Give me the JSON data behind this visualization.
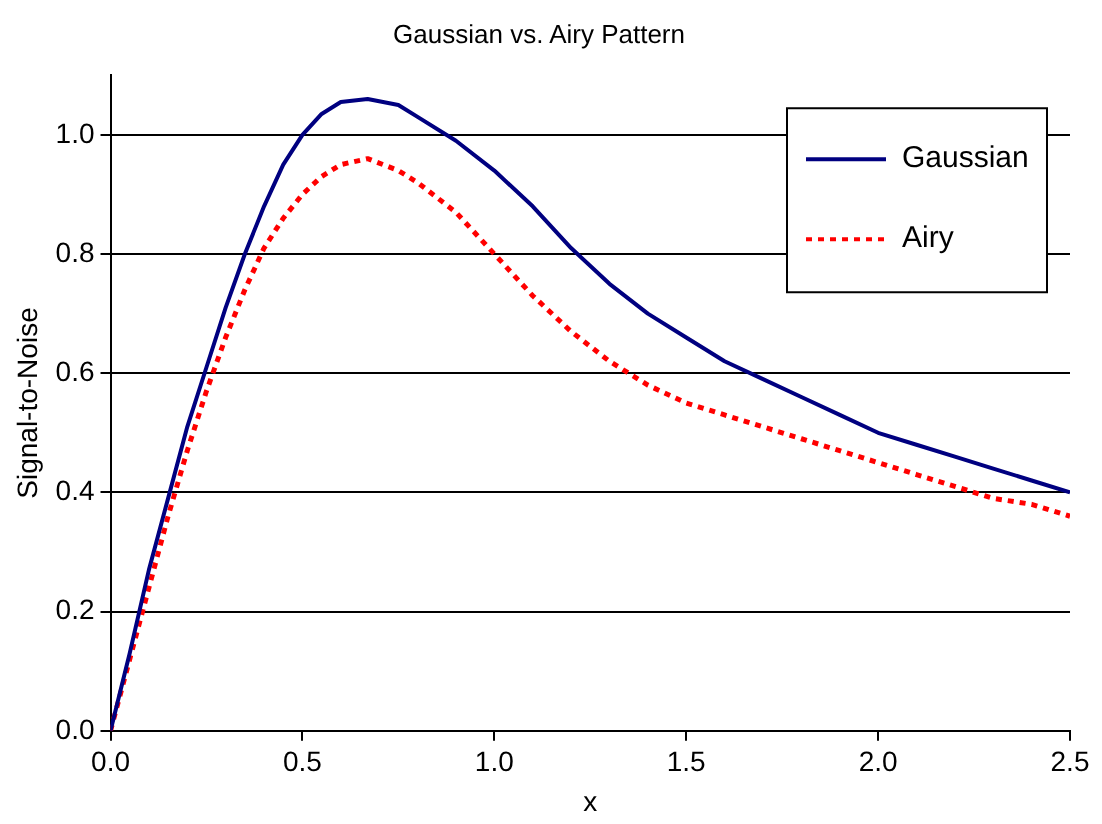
{
  "chart_data": {
    "type": "line",
    "title": "Gaussian vs. Airy Pattern",
    "xlabel": "x",
    "ylabel": "Signal-to-Noise",
    "x": [
      0,
      0.05,
      0.1,
      0.15,
      0.2,
      0.25,
      0.3,
      0.35,
      0.4,
      0.45,
      0.5,
      0.55,
      0.6,
      0.67,
      0.75,
      0.8,
      0.9,
      1.0,
      1.1,
      1.2,
      1.3,
      1.4,
      1.5,
      1.6,
      1.7,
      1.8,
      1.9,
      2.0,
      2.1,
      2.2,
      2.3,
      2.4,
      2.5
    ],
    "series": [
      {
        "name": "Gaussian",
        "color": "#000080",
        "line_style": "solid",
        "values": [
          0,
          0.13,
          0.27,
          0.39,
          0.51,
          0.61,
          0.71,
          0.8,
          0.88,
          0.95,
          1.0,
          1.035,
          1.055,
          1.06,
          1.05,
          1.03,
          0.99,
          0.94,
          0.88,
          0.81,
          0.75,
          0.7,
          0.66,
          0.62,
          0.59,
          0.56,
          0.53,
          0.5,
          0.48,
          0.46,
          0.44,
          0.42,
          0.4
        ]
      },
      {
        "name": "Airy",
        "color": "#ff0000",
        "line_style": "dotted",
        "values": [
          0,
          0.12,
          0.24,
          0.36,
          0.47,
          0.57,
          0.66,
          0.74,
          0.81,
          0.86,
          0.9,
          0.93,
          0.95,
          0.96,
          0.94,
          0.92,
          0.87,
          0.8,
          0.73,
          0.67,
          0.62,
          0.58,
          0.55,
          0.53,
          0.51,
          0.49,
          0.47,
          0.45,
          0.43,
          0.41,
          0.39,
          0.38,
          0.36
        ]
      }
    ],
    "xlim": [
      0,
      2.5
    ],
    "xticks": [
      {
        "value": 0,
        "label": "0.0"
      },
      {
        "value": 0.5,
        "label": "0.5"
      },
      {
        "value": 1,
        "label": "1.0"
      },
      {
        "value": 1.5,
        "label": "1.5"
      },
      {
        "value": 2,
        "label": "2.0"
      },
      {
        "value": 2.5,
        "label": "2.5"
      }
    ],
    "ylim": [
      0,
      1.1
    ],
    "yticks": [
      {
        "value": 0,
        "label": "0.0"
      },
      {
        "value": 0.2,
        "label": "0.2"
      },
      {
        "value": 0.4,
        "label": "0.4"
      },
      {
        "value": 0.6,
        "label": "0.6"
      },
      {
        "value": 0.8,
        "label": "0.8"
      },
      {
        "value": 1,
        "label": "1.0"
      }
    ],
    "grid": "y",
    "legend": "top right",
    "marker": "none"
  }
}
